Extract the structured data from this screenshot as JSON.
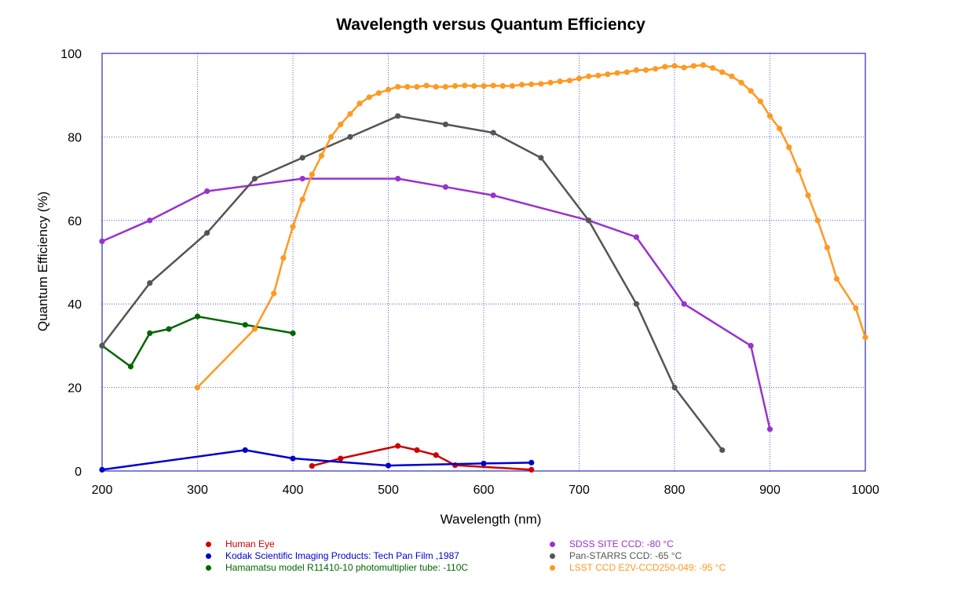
{
  "chart_data": {
    "type": "line",
    "title": "Wavelength versus Quantum Efficiency",
    "xlabel": "Wavelength (nm)",
    "ylabel": "Quantum Efficiency (%)",
    "xlim": [
      200,
      1000
    ],
    "ylim": [
      0,
      100
    ],
    "xticks": [
      200,
      300,
      400,
      500,
      600,
      700,
      800,
      900,
      1000
    ],
    "yticks": [
      0,
      20,
      40,
      60,
      80,
      100
    ],
    "grid": true,
    "legend_position": "bottom",
    "series": [
      {
        "name": "Human Eye",
        "color": "#cc0000",
        "points": [
          [
            420,
            1.2
          ],
          [
            450,
            3
          ],
          [
            510,
            6
          ],
          [
            530,
            5
          ],
          [
            550,
            3.8
          ],
          [
            570,
            1.4
          ],
          [
            650,
            0.3
          ]
        ]
      },
      {
        "name": "Kodak Scientific Imaging Products: Tech Pan Film ,1987",
        "color": "#0000cc",
        "points": [
          [
            200,
            0.3
          ],
          [
            350,
            5
          ],
          [
            400,
            3
          ],
          [
            500,
            1.3
          ],
          [
            600,
            1.8
          ],
          [
            650,
            2
          ]
        ]
      },
      {
        "name": "Hamamatsu model R11410-10 photomultiplier tube: -110C",
        "color": "#006600",
        "points": [
          [
            200,
            30
          ],
          [
            230,
            25
          ],
          [
            250,
            33
          ],
          [
            270,
            34
          ],
          [
            300,
            37
          ],
          [
            350,
            35
          ],
          [
            400,
            33
          ]
        ]
      },
      {
        "name": "SDSS SITE CCD:  -80 °C",
        "color": "#9933cc",
        "points": [
          [
            200,
            55
          ],
          [
            250,
            60
          ],
          [
            310,
            67
          ],
          [
            410,
            70
          ],
          [
            510,
            70
          ],
          [
            560,
            68
          ],
          [
            610,
            66
          ],
          [
            710,
            60
          ],
          [
            760,
            56
          ],
          [
            810,
            40
          ],
          [
            880,
            30
          ],
          [
            900,
            10
          ]
        ]
      },
      {
        "name": "Pan-STARRS CCD: -65 °C",
        "color": "#555555",
        "points": [
          [
            200,
            30
          ],
          [
            250,
            45
          ],
          [
            310,
            57
          ],
          [
            360,
            70
          ],
          [
            410,
            75
          ],
          [
            460,
            80
          ],
          [
            510,
            85
          ],
          [
            560,
            83
          ],
          [
            610,
            81
          ],
          [
            660,
            75
          ],
          [
            710,
            60
          ],
          [
            760,
            40
          ],
          [
            800,
            20
          ],
          [
            850,
            5
          ]
        ]
      },
      {
        "name": "LSST CCD E2V-CCD250-049: -95 °C",
        "color": "#ff9922",
        "points": [
          [
            300,
            20
          ],
          [
            360,
            34
          ],
          [
            380,
            42.5
          ],
          [
            390,
            51
          ],
          [
            400,
            58.5
          ],
          [
            410,
            65
          ],
          [
            420,
            71
          ],
          [
            430,
            75.5
          ],
          [
            440,
            80
          ],
          [
            450,
            83
          ],
          [
            460,
            85.5
          ],
          [
            470,
            88
          ],
          [
            480,
            89.5
          ],
          [
            490,
            90.5
          ],
          [
            500,
            91.3
          ],
          [
            510,
            92
          ],
          [
            520,
            92
          ],
          [
            530,
            92
          ],
          [
            540,
            92.3
          ],
          [
            550,
            92
          ],
          [
            560,
            92
          ],
          [
            570,
            92.2
          ],
          [
            580,
            92.3
          ],
          [
            590,
            92.2
          ],
          [
            600,
            92.2
          ],
          [
            610,
            92.3
          ],
          [
            620,
            92.2
          ],
          [
            630,
            92.2
          ],
          [
            640,
            92.5
          ],
          [
            650,
            92.6
          ],
          [
            660,
            92.7
          ],
          [
            670,
            93
          ],
          [
            680,
            93.3
          ],
          [
            690,
            93.5
          ],
          [
            700,
            94
          ],
          [
            710,
            94.5
          ],
          [
            720,
            94.7
          ],
          [
            730,
            95
          ],
          [
            740,
            95.3
          ],
          [
            750,
            95.5
          ],
          [
            760,
            96
          ],
          [
            770,
            96
          ],
          [
            780,
            96.3
          ],
          [
            790,
            96.8
          ],
          [
            800,
            97
          ],
          [
            810,
            96.6
          ],
          [
            820,
            97
          ],
          [
            830,
            97.2
          ],
          [
            840,
            96.5
          ],
          [
            850,
            95.5
          ],
          [
            860,
            94.5
          ],
          [
            870,
            93
          ],
          [
            880,
            91
          ],
          [
            890,
            88.5
          ],
          [
            900,
            85
          ],
          [
            910,
            82
          ],
          [
            920,
            77.5
          ],
          [
            930,
            72
          ],
          [
            940,
            66
          ],
          [
            950,
            60
          ],
          [
            960,
            53.5
          ],
          [
            970,
            46
          ],
          [
            990,
            39
          ],
          [
            1000,
            32
          ]
        ]
      }
    ]
  },
  "legend": {
    "left": [
      {
        "label": "Human Eye",
        "color": "#cc0000"
      },
      {
        "label": "Kodak Scientific Imaging Products: Tech Pan Film ,1987",
        "color": "#0000cc"
      },
      {
        "label": "Hamamatsu model R11410-10 photomultiplier tube: -110C",
        "color": "#006600"
      }
    ],
    "right": [
      {
        "label": "SDSS SITE CCD:  -80 °C",
        "color": "#9933cc"
      },
      {
        "label": "Pan-STARRS CCD: -65 °C",
        "color": "#555555"
      },
      {
        "label": "LSST CCD E2V-CCD250-049: -95 °C",
        "color": "#ff9922"
      }
    ]
  }
}
